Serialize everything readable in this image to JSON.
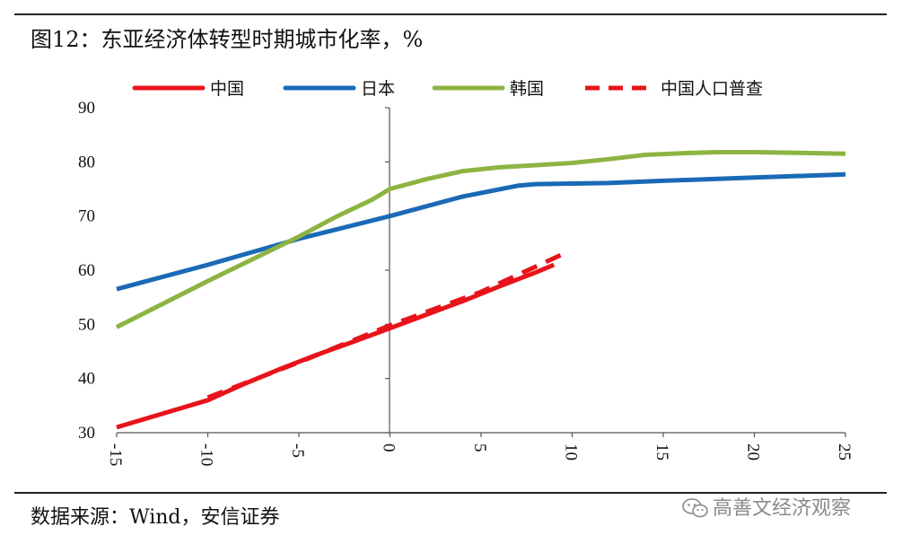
{
  "header": {
    "title": "图12：东亚经济体转型时期城市化率，%"
  },
  "footer": {
    "source": "数据来源：Wind，安信证券",
    "watermark": "高善文经济观察",
    "watermark_icon": "wechat-icon"
  },
  "chart_data": {
    "type": "line",
    "title": "图12：东亚经济体转型时期城市化率，%",
    "xlabel": "",
    "ylabel": "",
    "xlim": [
      -15,
      25
    ],
    "ylim": [
      30,
      90
    ],
    "x_ticks": [
      -15,
      -10,
      -5,
      0,
      5,
      10,
      15,
      20,
      25
    ],
    "y_ticks": [
      30,
      40,
      50,
      60,
      70,
      80,
      90
    ],
    "legend_position": "top",
    "grid": false,
    "series": [
      {
        "name": "中国",
        "color": "#e8141b",
        "dash": "solid",
        "points": [
          [
            -15,
            31
          ],
          [
            -12,
            34
          ],
          [
            -10,
            36
          ],
          [
            -8,
            39
          ],
          [
            -6,
            41.8
          ],
          [
            -4,
            44.4
          ],
          [
            -2,
            46.8
          ],
          [
            0,
            49.3
          ],
          [
            2,
            51.8
          ],
          [
            4,
            54.3
          ],
          [
            6,
            57
          ],
          [
            8,
            59.6
          ],
          [
            9,
            61
          ]
        ]
      },
      {
        "name": "日本",
        "color": "#1a6ab5",
        "dash": "solid",
        "points": [
          [
            -15,
            56.5
          ],
          [
            -10,
            61
          ],
          [
            -5,
            65.8
          ],
          [
            0,
            70
          ],
          [
            4,
            73.6
          ],
          [
            7,
            75.6
          ],
          [
            8,
            75.9
          ],
          [
            10,
            76
          ],
          [
            12,
            76.1
          ],
          [
            15,
            76.5
          ],
          [
            20,
            77.1
          ],
          [
            25,
            77.7
          ]
        ]
      },
      {
        "name": "韩国",
        "color": "#8db442",
        "dash": "solid",
        "points": [
          [
            -15,
            49.5
          ],
          [
            -10,
            58
          ],
          [
            -5,
            66.2
          ],
          [
            -3,
            69.8
          ],
          [
            -1,
            73
          ],
          [
            0,
            75
          ],
          [
            2,
            76.8
          ],
          [
            4,
            78.3
          ],
          [
            6,
            79
          ],
          [
            8,
            79.4
          ],
          [
            10,
            79.8
          ],
          [
            12,
            80.5
          ],
          [
            14,
            81.3
          ],
          [
            16,
            81.6
          ],
          [
            18,
            81.8
          ],
          [
            20,
            81.8
          ],
          [
            22,
            81.7
          ],
          [
            25,
            81.5
          ]
        ]
      },
      {
        "name": "中国人口普查",
        "color": "#e8141b",
        "dash": "dashed",
        "points": [
          [
            -10,
            36.5
          ],
          [
            -5,
            43
          ],
          [
            0,
            49.8
          ],
          [
            5,
            56
          ],
          [
            9.5,
            63
          ]
        ]
      }
    ]
  }
}
